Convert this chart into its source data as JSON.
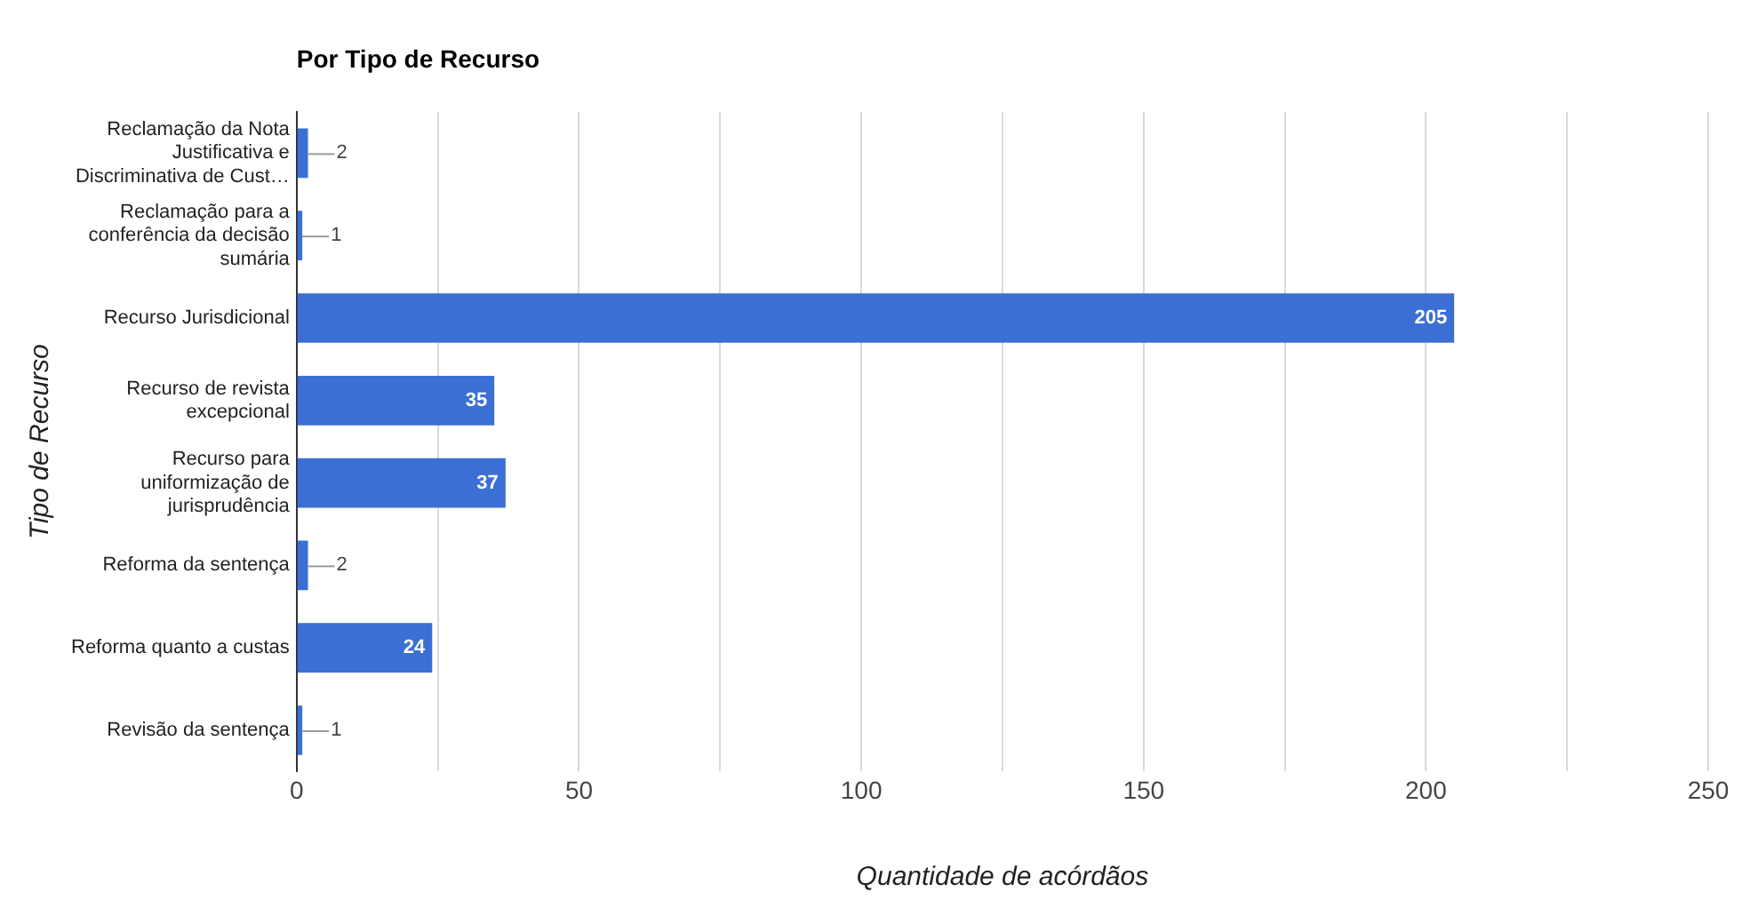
{
  "chart_data": {
    "type": "bar",
    "orientation": "horizontal",
    "title": "Por Tipo de Recurso",
    "xlabel": "Quantidade de acórdãos",
    "ylabel": "Tipo de Recurso",
    "categories": [
      "Reclamação da Nota Justificativa e Discriminativa de Cust…",
      "Reclamação para a conferência da decisão sumária",
      "Recurso Jurisdicional",
      "Recurso de revista excepcional",
      "Recurso para uniformização de jurisprudência",
      "Reforma da sentença",
      "Reforma quanto a custas",
      "Revisão da sentença"
    ],
    "values": [
      2,
      1,
      205,
      35,
      37,
      2,
      24,
      1
    ],
    "color": "#3b6fd4",
    "xlim": [
      0,
      250
    ],
    "xticks": [
      0,
      {
        "value": 25,
        "label": null
      },
      50,
      {
        "value": 75,
        "label": null
      },
      100,
      {
        "value": 125,
        "label": null
      },
      150,
      {
        "value": 175,
        "label": null
      },
      200,
      {
        "value": 225,
        "label": null
      },
      250
    ],
    "grid": "x",
    "legend": false,
    "data_labels": true
  }
}
